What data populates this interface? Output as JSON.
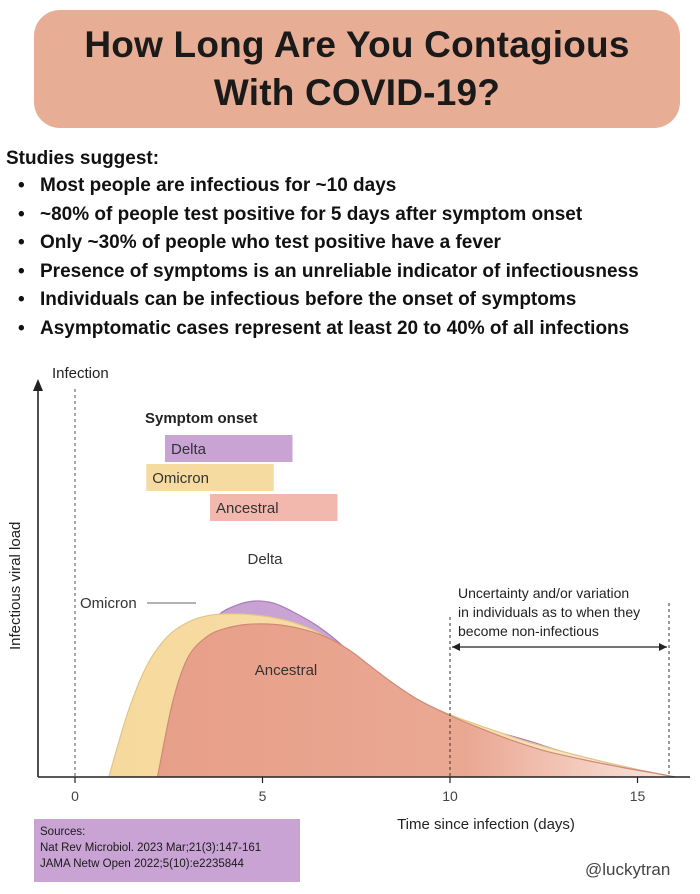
{
  "header": {
    "title_line1": "How Long Are You Contagious",
    "title_line2": "With COVID-19?"
  },
  "studies": {
    "heading": "Studies suggest:",
    "bullets": [
      "Most people are infectious for ~10 days",
      "~80% of people test positive for 5 days after symptom onset",
      "Only ~30% of people who test positive have a fever",
      "Presence of symptoms is an unreliable indicator of infectiousness",
      "Individuals can be infectious before the onset of symptoms",
      "Asymptomatic cases represent at least 20 to 40% of all infections"
    ]
  },
  "chart_data": {
    "type": "area",
    "title": "",
    "xlabel": "Time since infection (days)",
    "ylabel": "Infectious viral load",
    "xlim": [
      -1,
      16.5
    ],
    "ylim": [
      0,
      1
    ],
    "x_ticks": [
      0,
      5,
      10,
      15
    ],
    "infection_marker": {
      "label": "Infection",
      "x": 0
    },
    "symptom_onset": {
      "heading": "Symptom onset",
      "ranges": [
        {
          "name": "Delta",
          "start": 2.4,
          "end": 5.8,
          "color": "#c9a3d4"
        },
        {
          "name": "Omicron",
          "start": 1.9,
          "end": 5.3,
          "color": "#f6dba0"
        },
        {
          "name": "Ancestral",
          "start": 3.6,
          "end": 7.0,
          "color": "#f2b8ae"
        }
      ]
    },
    "series": [
      {
        "name": "Delta",
        "color": "#c9a3d4",
        "x": [
          2.4,
          2.9,
          3.3,
          3.8,
          4.3,
          4.8,
          5.3,
          5.8,
          6.4,
          7.0,
          7.6,
          8.3,
          9.0,
          9.8,
          10.5,
          11.3,
          12.1,
          13.0,
          14.0,
          15.0,
          16.0
        ],
        "y": [
          0.0,
          0.45,
          0.64,
          0.76,
          0.81,
          0.83,
          0.82,
          0.78,
          0.72,
          0.64,
          0.54,
          0.44,
          0.36,
          0.3,
          0.25,
          0.21,
          0.17,
          0.12,
          0.075,
          0.035,
          0.0
        ]
      },
      {
        "name": "Omicron",
        "color": "#f6dba0",
        "x": [
          0.9,
          1.4,
          1.9,
          2.4,
          2.9,
          3.5,
          4.2,
          5.0,
          5.8,
          6.5,
          7.2,
          7.9,
          8.6,
          9.4,
          10.2,
          11.0,
          12.0,
          13.0,
          14.0,
          15.0,
          16.0
        ],
        "y": [
          0.0,
          0.3,
          0.52,
          0.65,
          0.72,
          0.76,
          0.77,
          0.76,
          0.73,
          0.68,
          0.6,
          0.5,
          0.41,
          0.34,
          0.28,
          0.23,
          0.17,
          0.12,
          0.075,
          0.035,
          0.0
        ]
      },
      {
        "name": "Ancestral",
        "color": "#e9a38e",
        "x": [
          2.2,
          2.6,
          3.0,
          3.5,
          4.0,
          4.6,
          5.3,
          6.0,
          6.7,
          7.3,
          7.9,
          8.5,
          9.2,
          10.0,
          10.8,
          11.7,
          12.6,
          13.6,
          14.6,
          15.4,
          16.0
        ],
        "y": [
          0.0,
          0.35,
          0.56,
          0.66,
          0.7,
          0.72,
          0.72,
          0.7,
          0.66,
          0.6,
          0.52,
          0.44,
          0.36,
          0.29,
          0.23,
          0.17,
          0.12,
          0.08,
          0.045,
          0.02,
          0.0
        ]
      }
    ],
    "annotations": {
      "omicron_label": "Omicron",
      "uncertainty_line1": "Uncertainty and/or variation",
      "uncertainty_line2": "in individuals as to when they",
      "uncertainty_line3": "become non-infectious",
      "uncertainty_range": [
        10,
        16
      ]
    }
  },
  "sources": {
    "heading": "Sources:",
    "line1": "Nat Rev Microbiol. 2023 Mar;21(3):147-161",
    "line2": "JAMA Netw Open 2022;5(10):e2235844"
  },
  "handle": "@luckytran"
}
